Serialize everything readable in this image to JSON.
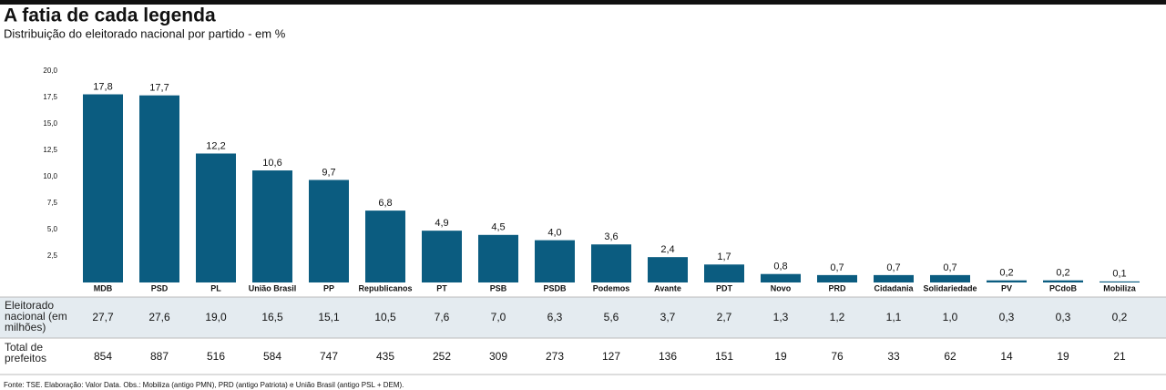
{
  "chart_data": {
    "type": "bar",
    "title": "A fatia de cada legenda",
    "subtitle": "Distribuição do eleitorado nacional por partido - em %",
    "categories": [
      "MDB",
      "PSD",
      "PL",
      "União Brasil",
      "PP",
      "Republicanos",
      "PT",
      "PSB",
      "PSDB",
      "Podemos",
      "Avante",
      "PDT",
      "Novo",
      "PRD",
      "Cidadania",
      "Solidariedade",
      "PV",
      "PCdoB",
      "Mobiliza"
    ],
    "values": [
      17.8,
      17.7,
      12.2,
      10.6,
      9.7,
      6.8,
      4.9,
      4.5,
      4.0,
      3.6,
      2.4,
      1.7,
      0.8,
      0.7,
      0.7,
      0.7,
      0.2,
      0.2,
      0.1
    ],
    "value_labels": [
      "17,8",
      "17,7",
      "12,2",
      "10,6",
      "9,7",
      "6,8",
      "4,9",
      "4,5",
      "4,0",
      "3,6",
      "2,4",
      "1,7",
      "0,8",
      "0,7",
      "0,7",
      "0,7",
      "0,2",
      "0,2",
      "0,1"
    ],
    "color": "#0b5c80",
    "ylim": [
      0,
      20
    ],
    "yticks": [
      {
        "value": 2.5,
        "label": "2,5"
      },
      {
        "value": 5,
        "label": "5,0"
      },
      {
        "value": 7.5,
        "label": "7,5"
      },
      {
        "value": 10,
        "label": "10,0"
      },
      {
        "value": 12.5,
        "label": "12,5"
      },
      {
        "value": 15,
        "label": "15,0"
      },
      {
        "value": 17.5,
        "label": "17,5"
      },
      {
        "value": 20,
        "label": "20,0"
      }
    ],
    "grid": false,
    "table": {
      "rows": [
        {
          "label": "Eleitorado nacional (em milhões)",
          "values": [
            "27,7",
            "27,6",
            "19,0",
            "16,5",
            "15,1",
            "10,5",
            "7,6",
            "7,0",
            "6,3",
            "5,6",
            "3,7",
            "2,7",
            "1,3",
            "1,2",
            "1,1",
            "1,0",
            "0,3",
            "0,3",
            "0,2"
          ]
        },
        {
          "label": "Total de prefeitos",
          "values": [
            854,
            887,
            516,
            584,
            747,
            435,
            252,
            309,
            273,
            127,
            136,
            151,
            19,
            76,
            33,
            62,
            14,
            19,
            21
          ]
        }
      ]
    },
    "source": "Fonte: TSE. Elaboração: Valor Data. Obs.: Mobiliza (antigo PMN), PRD (antigo Patriota) e União Brasil (antigo PSL + DEM)."
  }
}
